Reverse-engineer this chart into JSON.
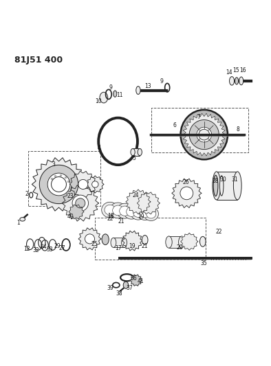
{
  "title": "81J51 400",
  "bg_color": "#ffffff",
  "line_color": "#222222",
  "fill_color": "#cccccc",
  "dark_fill": "#888888",
  "light_fill": "#eeeeee"
}
